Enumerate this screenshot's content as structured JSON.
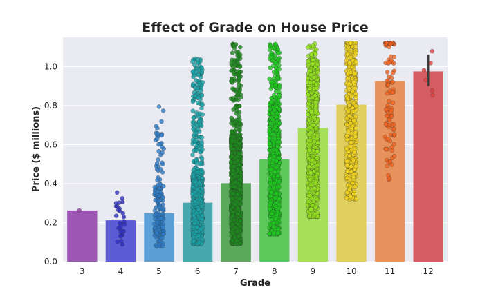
{
  "chart_data": {
    "type": "bar",
    "title": "Effect of Grade on House Price",
    "xlabel": "Grade",
    "ylabel": "Price ($ millions)",
    "ylim": [
      0,
      1.15
    ],
    "yticks": [
      "0.0",
      "0.2",
      "0.4",
      "0.6",
      "0.8",
      "1.0"
    ],
    "grid": true,
    "overlay": "strip points (individual house prices)",
    "categories": [
      "3",
      "4",
      "5",
      "6",
      "7",
      "8",
      "9",
      "10",
      "11",
      "12"
    ],
    "values": [
      0.262,
      0.212,
      0.248,
      0.302,
      0.402,
      0.524,
      0.685,
      0.805,
      0.925,
      0.975
    ],
    "error_bars": [
      null,
      null,
      null,
      null,
      null,
      null,
      null,
      null,
      null,
      [
        0.9,
        1.06
      ]
    ],
    "colors": {
      "bars": [
        "#9e56b5",
        "#5b5bd6",
        "#5a9fd6",
        "#47a8ad",
        "#5aa85a",
        "#5cc85c",
        "#a6e05a",
        "#e0d060",
        "#e8935e",
        "#d45c62"
      ],
      "points": [
        "#8e3f9f",
        "#3030c0",
        "#2d7bc6",
        "#1aa3a6",
        "#1e8a1e",
        "#1ec81e",
        "#93e11e",
        "#f0d21e",
        "#f06420",
        "#e04040"
      ],
      "background": "#eaeaf2",
      "grid": "#ffffff"
    },
    "strip": [
      {
        "n": 1,
        "min": 0.262,
        "max": 0.262,
        "dense": 0.262
      },
      {
        "n": 30,
        "min": 0.08,
        "max": 0.44,
        "dense": 0.22
      },
      {
        "n": 160,
        "min": 0.08,
        "max": 0.8,
        "dense": 0.25
      },
      {
        "n": 700,
        "min": 0.09,
        "max": 1.06,
        "dense": 0.3
      },
      {
        "n": 2200,
        "min": 0.09,
        "max": 1.12,
        "dense": 0.4
      },
      {
        "n": 2400,
        "min": 0.14,
        "max": 1.12,
        "dense": 0.52
      },
      {
        "n": 1300,
        "min": 0.23,
        "max": 1.12,
        "dense": 0.68
      },
      {
        "n": 500,
        "min": 0.32,
        "max": 1.12,
        "dense": 0.8
      },
      {
        "n": 110,
        "min": 0.42,
        "max": 1.12,
        "dense": 0.95
      },
      {
        "n": 6,
        "min": 0.84,
        "max": 1.1,
        "dense": 1.0
      }
    ]
  }
}
